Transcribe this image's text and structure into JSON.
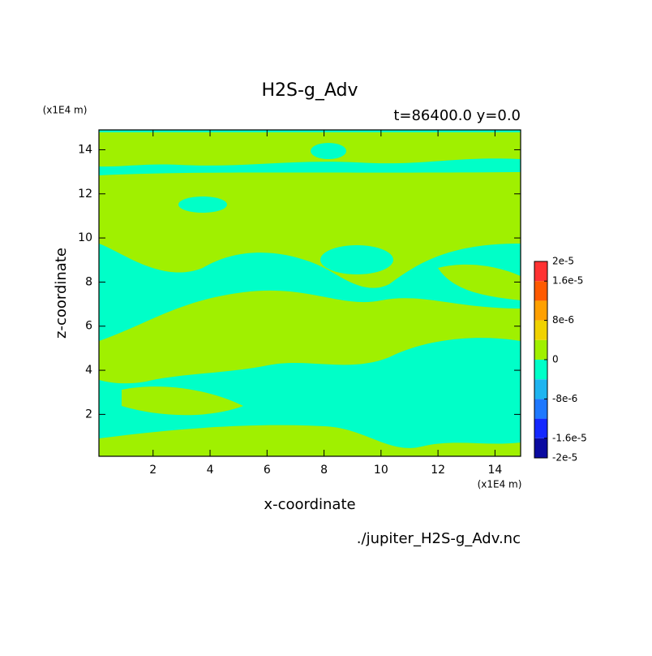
{
  "chart_data": {
    "type": "contour",
    "title": "H2S-g_Adv",
    "subtitle": "t=86400.0 y=0.0",
    "x_label": "x-coordinate",
    "y_label": "z-coordinate",
    "x_unit": "(x1E4 m)",
    "y_unit": "(x1E4 m)",
    "source": "./jupiter_H2S-g_Adv.nc",
    "xlim": [
      0.1,
      14.9
    ],
    "ylim": [
      0.1,
      14.9
    ],
    "xticks": [
      2,
      4,
      6,
      8,
      10,
      12,
      14
    ],
    "yticks": [
      2,
      4,
      6,
      8,
      10,
      12,
      14
    ],
    "colorbar": {
      "levels": [
        -2e-05,
        -1.6e-05,
        -1.2e-05,
        -8e-06,
        -4e-06,
        0,
        4e-06,
        8e-06,
        1.2e-05,
        1.6e-05,
        2e-05
      ],
      "colors": [
        "#0a0aa0",
        "#1428ff",
        "#1e78ff",
        "#1eb4f0",
        "#00ffc8",
        "#a0f000",
        "#f0d200",
        "#ffa000",
        "#ff5a00",
        "#ff3232"
      ],
      "ticks": [
        {
          "value": 2e-05,
          "label": "2e-5"
        },
        {
          "value": 1.6e-05,
          "label": "1.6e-5"
        },
        {
          "value": 8e-06,
          "label": "8e-6"
        },
        0,
        {
          "value": -8e-06,
          "label": "-8e-6"
        },
        {
          "value": -1.6e-05,
          "label": "-1.6e-5"
        },
        {
          "value": -2e-05,
          "label": "-2e-5"
        }
      ]
    }
  }
}
